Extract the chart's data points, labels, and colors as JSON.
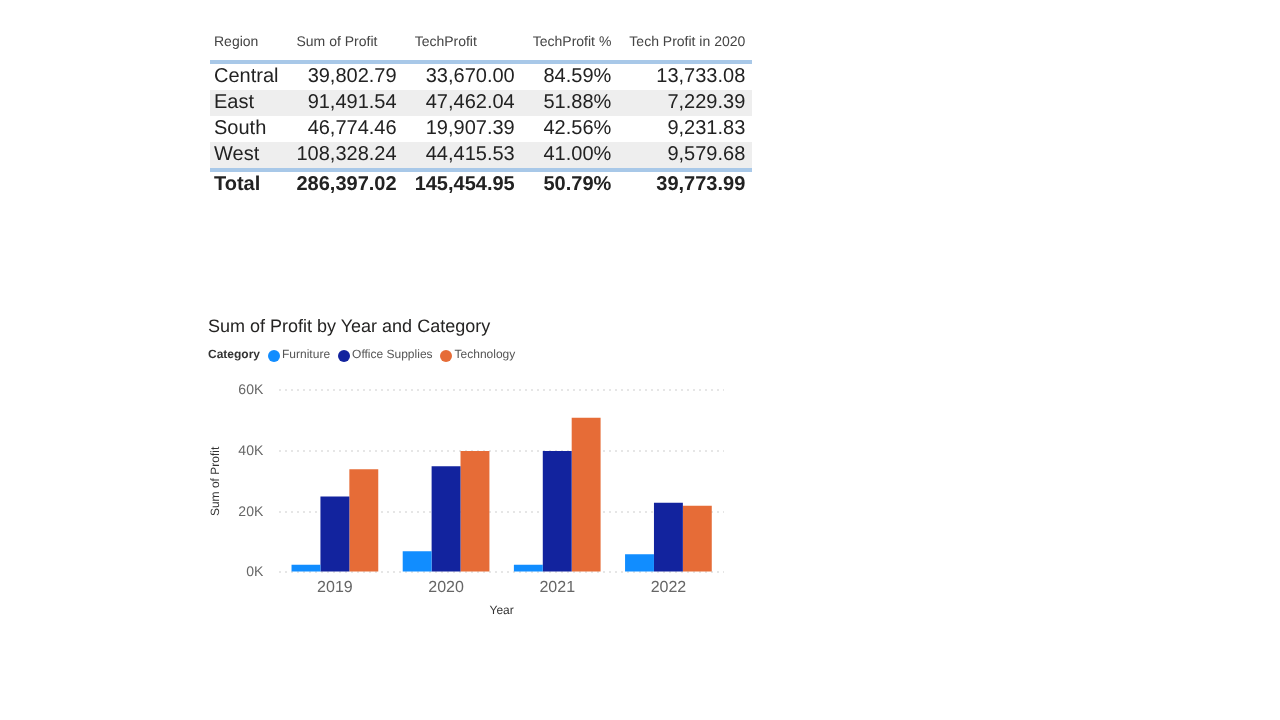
{
  "chart_data": [
    {
      "type": "other",
      "xlabel": "Region",
      "categories": [
        "Central",
        "East",
        "South",
        "West",
        "Total"
      ],
      "series": [
        {
          "name": "Sum of Profit",
          "values": [
            39802.79,
            91491.54,
            46774.46,
            108328.24,
            286397.02
          ],
          "value_labels": [
            "39,802.79",
            "91,491.54",
            "46,774.46",
            "108,328.24",
            "286,397.02"
          ]
        },
        {
          "name": "TechProfit",
          "values": [
            33670.0,
            47462.04,
            19907.39,
            44415.53,
            145454.95
          ],
          "value_labels": [
            "33,670.00",
            "47,462.04",
            "19,907.39",
            "44,415.53",
            "145,454.95"
          ]
        },
        {
          "name": "TechProfit %",
          "values": [
            84.59,
            51.88,
            42.56,
            41.0,
            50.79
          ],
          "value_labels": [
            "84.59%",
            "51.88%",
            "42.56%",
            "41.00%",
            "50.79%"
          ]
        },
        {
          "name": "Tech Profit in 2020",
          "values": [
            13733.08,
            7229.39,
            9231.83,
            9579.68,
            39773.99
          ],
          "value_labels": [
            "13,733.08",
            "7,229.39",
            "9,231.83",
            "9,579.68",
            "39,773.99"
          ]
        }
      ]
    },
    {
      "type": "bar",
      "title": "Sum of Profit by Year and Category",
      "xlabel": "Year",
      "ylabel": "Sum of Profit",
      "legend_title": "Category",
      "legend": "top left",
      "grid": "y",
      "categories": [
        "2019",
        "2020",
        "2021",
        "2022"
      ],
      "series": [
        {
          "name": "Furniture",
          "color": "#118dff",
          "values": [
            2500,
            7000,
            2500,
            6000
          ]
        },
        {
          "name": "Office Supplies",
          "color": "#12239e",
          "values": [
            25000,
            35000,
            40000,
            23000
          ]
        },
        {
          "name": "Technology",
          "color": "#e66c37",
          "values": [
            34000,
            40000,
            51000,
            22000
          ]
        }
      ],
      "ylim": [
        0,
        60000
      ],
      "yticks": [
        {
          "value": 0,
          "label": "0K"
        },
        {
          "value": 20000,
          "label": "20K"
        },
        {
          "value": 40000,
          "label": "40K"
        },
        {
          "value": 60000,
          "label": "60K"
        }
      ]
    }
  ]
}
